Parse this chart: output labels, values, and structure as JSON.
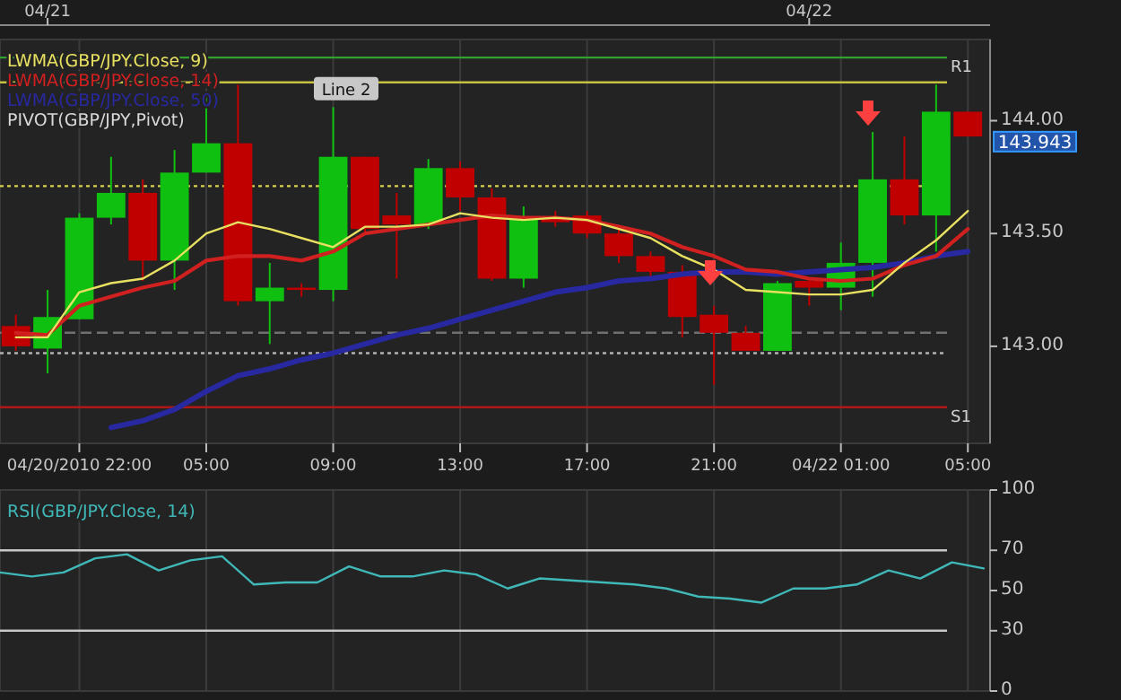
{
  "chart_data": [
    {
      "type": "candlestick",
      "x": [
        "2010-04-20T23:00",
        "2010-04-21T00:00",
        "2010-04-21T01:00",
        "2010-04-21T02:00",
        "2010-04-21T03:00",
        "2010-04-21T04:00",
        "2010-04-21T05:00",
        "2010-04-21T06:00",
        "2010-04-21T07:00",
        "2010-04-21T08:00",
        "2010-04-21T09:00",
        "2010-04-21T10:00",
        "2010-04-21T11:00",
        "2010-04-21T12:00",
        "2010-04-21T13:00",
        "2010-04-21T14:00",
        "2010-04-21T15:00",
        "2010-04-21T16:00",
        "2010-04-21T17:00",
        "2010-04-21T18:00",
        "2010-04-21T19:00",
        "2010-04-21T20:00",
        "2010-04-21T21:00",
        "2010-04-21T22:00",
        "2010-04-21T23:00",
        "2010-04-22T00:00",
        "2010-04-22T01:00",
        "2010-04-22T02:00",
        "2010-04-22T03:00",
        "2010-04-22T04:00",
        "2010-04-22T05:00"
      ],
      "ohlc": [
        [
          143.09,
          143.14,
          142.98,
          143.0
        ],
        [
          142.99,
          143.25,
          142.88,
          143.13
        ],
        [
          143.12,
          143.59,
          143.12,
          143.57
        ],
        [
          143.57,
          143.84,
          143.54,
          143.68
        ],
        [
          143.68,
          143.74,
          143.29,
          143.38
        ],
        [
          143.38,
          143.87,
          143.25,
          143.77
        ],
        [
          143.77,
          144.11,
          143.77,
          143.9
        ],
        [
          143.9,
          144.16,
          143.18,
          143.2
        ],
        [
          143.2,
          143.37,
          143.01,
          143.26
        ],
        [
          143.26,
          143.28,
          143.22,
          143.25
        ],
        [
          143.25,
          144.06,
          143.2,
          143.84
        ],
        [
          143.84,
          143.84,
          143.5,
          143.52
        ],
        [
          143.58,
          143.68,
          143.3,
          143.54
        ],
        [
          143.54,
          143.83,
          143.52,
          143.79
        ],
        [
          143.79,
          143.82,
          143.6,
          143.66
        ],
        [
          143.66,
          143.7,
          143.29,
          143.3
        ],
        [
          143.3,
          143.62,
          143.26,
          143.57
        ],
        [
          143.57,
          143.6,
          143.53,
          143.55
        ],
        [
          143.58,
          143.6,
          143.48,
          143.5
        ],
        [
          143.5,
          143.52,
          143.37,
          143.4
        ],
        [
          143.4,
          143.42,
          143.3,
          143.33
        ],
        [
          143.33,
          143.36,
          143.04,
          143.13
        ],
        [
          143.14,
          143.18,
          142.83,
          143.06
        ],
        [
          143.06,
          143.09,
          142.98,
          142.98
        ],
        [
          142.98,
          143.29,
          142.98,
          143.28
        ],
        [
          143.29,
          143.3,
          143.18,
          143.26
        ],
        [
          143.26,
          143.46,
          143.16,
          143.37
        ],
        [
          143.37,
          143.95,
          143.22,
          143.74
        ],
        [
          143.74,
          143.93,
          143.54,
          143.58
        ],
        [
          143.58,
          144.16,
          143.42,
          144.04
        ],
        [
          144.04,
          144.04,
          143.93,
          143.93
        ]
      ],
      "series": [
        {
          "type": "line",
          "name": "LWMA(GBP/JPY.Close, 9)",
          "color": "#e8e060",
          "values": [
            143.04,
            143.04,
            143.24,
            143.28,
            143.3,
            143.38,
            143.5,
            143.55,
            143.52,
            143.48,
            143.44,
            143.53,
            143.53,
            143.54,
            143.59,
            143.57,
            143.56,
            143.57,
            143.56,
            143.52,
            143.48,
            143.4,
            143.34,
            143.25,
            143.24,
            143.23,
            143.23,
            143.25,
            143.37,
            143.47,
            143.6
          ]
        },
        {
          "type": "line",
          "name": "LWMA(GBP/JPY.Close, 14)",
          "color": "#d02020",
          "values": [
            143.06,
            143.05,
            143.18,
            143.22,
            143.26,
            143.29,
            143.38,
            143.4,
            143.4,
            143.38,
            143.42,
            143.5,
            143.52,
            143.54,
            143.56,
            143.58,
            143.57,
            143.57,
            143.56,
            143.53,
            143.5,
            143.44,
            143.4,
            143.34,
            143.33,
            143.3,
            143.29,
            143.3,
            143.36,
            143.4,
            143.52
          ]
        },
        {
          "type": "line",
          "name": "LWMA(GBP/JPY.Close, 50)",
          "color": "#2828a0",
          "values": [
            null,
            null,
            null,
            142.64,
            142.67,
            142.72,
            142.8,
            142.87,
            142.9,
            142.94,
            142.97,
            143.01,
            143.05,
            143.08,
            143.12,
            143.16,
            143.2,
            143.24,
            143.26,
            143.29,
            143.3,
            143.32,
            143.33,
            143.33,
            143.32,
            143.33,
            143.34,
            143.35,
            143.37,
            143.4,
            143.42
          ]
        }
      ],
      "xlim": [
        "2010-04-20T22:30",
        "2010-04-22T05:42"
      ],
      "xticks": [
        {
          "value": "2010-04-21T01:00",
          "label": "04/20/2010 22:00"
        },
        {
          "value": "2010-04-21T05:00",
          "label": "05:00"
        },
        {
          "value": "2010-04-21T09:00",
          "label": "09:00"
        },
        {
          "value": "2010-04-21T13:00",
          "label": "13:00"
        },
        {
          "value": "2010-04-21T17:00",
          "label": "17:00"
        },
        {
          "value": "2010-04-21T21:00",
          "label": "21:00"
        },
        {
          "value": "2010-04-22T01:00",
          "label": "04/22 01:00"
        },
        {
          "value": "2010-04-22T05:00",
          "label": "05:00"
        }
      ],
      "x2lim": [
        "2010-04-20T22:30",
        "2010-04-22T05:42"
      ],
      "x2ticks": [
        {
          "value": "2010-04-21",
          "label": "04/21"
        },
        {
          "value": "2010-04-22",
          "label": "04/22"
        }
      ],
      "ylim": [
        142.57,
        144.36
      ],
      "yticks": [
        {
          "value": 143,
          "label": "143.00"
        },
        {
          "value": 143.5,
          "label": "143.50"
        },
        {
          "value": 144,
          "label": "144.00"
        }
      ],
      "ref_lines": [
        {
          "axis": "y",
          "value": 144.28,
          "label": "R1",
          "color": "#30a030",
          "line_style": "solid"
        },
        {
          "axis": "y",
          "value": 144.17,
          "label": "Line 2",
          "color": "#c8c040",
          "line_style": "solid"
        },
        {
          "axis": "y",
          "value": 143.71,
          "label": null,
          "color": "#d8d050",
          "line_style": "dotted"
        },
        {
          "axis": "y",
          "value": 143.06,
          "label": null,
          "color": "#707070",
          "line_style": "dashed"
        },
        {
          "axis": "y",
          "value": 142.97,
          "label": null,
          "color": "#b0b0b0",
          "line_style": "dotted"
        },
        {
          "axis": "y",
          "value": 142.73,
          "label": "S1",
          "color": "#b01818",
          "line_style": "solid"
        }
      ],
      "annotations": [
        "PIVOT(GBP/JPY,Pivot)",
        {
          "text": "143.943",
          "x": "2010-04-22T05:00",
          "y": 143.943
        }
      ],
      "grid": "x",
      "legend": "top left"
    },
    {
      "type": "line",
      "series": [
        {
          "name": "RSI(GBP/JPY.Close, 14)",
          "color": "#40b8b8",
          "x": [
            "2010-04-20T22:30",
            "2010-04-20T23:30",
            "2010-04-21T00:30",
            "2010-04-21T01:30",
            "2010-04-21T02:30",
            "2010-04-21T03:30",
            "2010-04-21T04:30",
            "2010-04-21T05:30",
            "2010-04-21T06:30",
            "2010-04-21T07:30",
            "2010-04-21T08:30",
            "2010-04-21T09:30",
            "2010-04-21T10:30",
            "2010-04-21T11:30",
            "2010-04-21T12:30",
            "2010-04-21T13:30",
            "2010-04-21T14:30",
            "2010-04-21T15:30",
            "2010-04-21T16:30",
            "2010-04-21T17:30",
            "2010-04-21T18:30",
            "2010-04-21T19:30",
            "2010-04-21T20:30",
            "2010-04-21T21:30",
            "2010-04-21T22:30",
            "2010-04-21T23:30",
            "2010-04-22T00:30",
            "2010-04-22T01:30",
            "2010-04-22T02:30",
            "2010-04-22T03:30",
            "2010-04-22T04:30",
            "2010-04-22T05:30"
          ],
          "values": [
            59,
            57,
            59,
            66,
            68,
            60,
            65,
            67,
            53,
            54,
            54,
            62,
            57,
            57,
            60,
            58,
            51,
            56,
            55,
            54,
            53,
            51,
            47,
            46,
            44,
            51,
            51,
            53,
            60,
            56,
            64,
            61
          ]
        }
      ],
      "xlim": [
        "2010-04-20T22:30",
        "2010-04-22T05:42"
      ],
      "ylim": [
        0,
        100
      ],
      "yticks": [
        0,
        30,
        50,
        70,
        100
      ],
      "ref_lines": [
        {
          "axis": "y",
          "value": 30,
          "label": null,
          "color": "#c8c8c8",
          "line_style": "solid"
        },
        {
          "axis": "y",
          "value": 70,
          "label": null,
          "color": "#c8c8c8",
          "line_style": "solid"
        }
      ],
      "grid": "x",
      "tick_labels": "y",
      "legend": "top left"
    }
  ]
}
